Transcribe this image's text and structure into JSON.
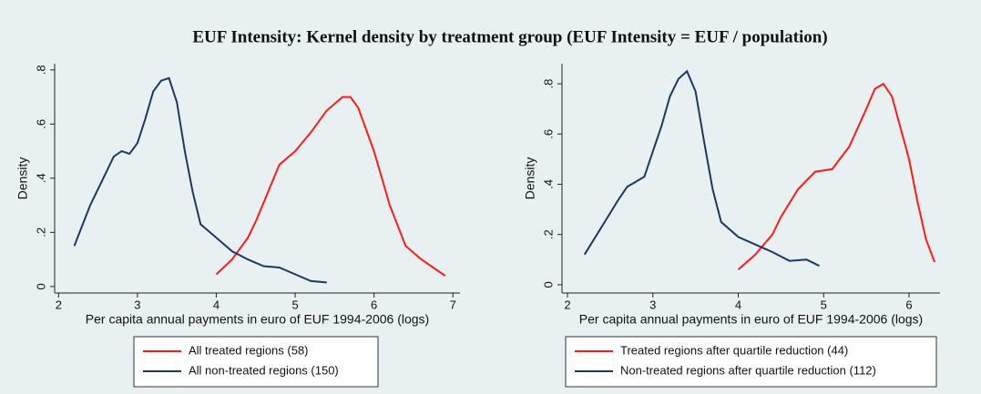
{
  "title": "EUF Intensity: Kernel density by treatment group (EUF Intensity = EUF / population)",
  "chart_data": [
    {
      "type": "line",
      "x_label": "Per capita annual payments in euro of EUF 1994-2006 (logs)",
      "y_label": "Density",
      "xlim": [
        1.95,
        7.09
      ],
      "ylim": [
        -0.024,
        0.823
      ],
      "xticks": [
        2,
        3,
        4,
        5,
        6,
        7
      ],
      "yticks": [
        0,
        {
          "value": 0.2,
          "label": ".2"
        },
        {
          "value": 0.4,
          "label": ".4"
        },
        {
          "value": 0.6,
          "label": ".6"
        },
        {
          "value": 0.8,
          "label": ".8"
        }
      ],
      "series": [
        {
          "name": "All treated regions (58)",
          "color": "#ff1a1a",
          "x": [
            4.0,
            4.2,
            4.4,
            4.5,
            4.7,
            4.8,
            5.0,
            5.2,
            5.4,
            5.6,
            5.7,
            5.8,
            6.0,
            6.2,
            6.4,
            6.6,
            6.8,
            6.9
          ],
          "values": [
            0.045,
            0.1,
            0.18,
            0.24,
            0.38,
            0.45,
            0.5,
            0.57,
            0.65,
            0.7,
            0.7,
            0.66,
            0.5,
            0.3,
            0.15,
            0.1,
            0.06,
            0.04
          ]
        },
        {
          "name": "All non-treated regions (150)",
          "color": "#1c3766",
          "x": [
            2.2,
            2.4,
            2.6,
            2.7,
            2.8,
            2.9,
            3.0,
            3.1,
            3.2,
            3.3,
            3.4,
            3.5,
            3.6,
            3.7,
            3.8,
            4.0,
            4.2,
            4.4,
            4.6,
            4.8,
            5.0,
            5.2,
            5.4
          ],
          "values": [
            0.15,
            0.3,
            0.42,
            0.48,
            0.5,
            0.49,
            0.53,
            0.62,
            0.72,
            0.76,
            0.77,
            0.68,
            0.5,
            0.35,
            0.23,
            0.18,
            0.13,
            0.1,
            0.075,
            0.07,
            0.045,
            0.02,
            0.015
          ]
        }
      ]
    },
    {
      "type": "line",
      "x_label": "Per capita annual payments in euro of EUF 1994-2006 (logs)",
      "y_label": "Density",
      "xlim": [
        1.936,
        6.363
      ],
      "ylim": [
        -0.033,
        0.88
      ],
      "xticks": [
        2,
        3,
        4,
        5,
        6
      ],
      "yticks": [
        0,
        {
          "value": 0.2,
          "label": ".2"
        },
        {
          "value": 0.4,
          "label": ".4"
        },
        {
          "value": 0.6,
          "label": ".6"
        },
        {
          "value": 0.8,
          "label": ".8"
        }
      ],
      "series": [
        {
          "name": "Treated regions after quartile reduction (44)",
          "color": "#ff1a1a",
          "x": [
            4.0,
            4.2,
            4.4,
            4.5,
            4.7,
            4.9,
            5.1,
            5.3,
            5.5,
            5.6,
            5.7,
            5.8,
            6.0,
            6.1,
            6.2,
            6.3
          ],
          "values": [
            0.06,
            0.12,
            0.2,
            0.27,
            0.38,
            0.45,
            0.46,
            0.55,
            0.7,
            0.78,
            0.8,
            0.75,
            0.5,
            0.33,
            0.18,
            0.09
          ]
        },
        {
          "name": "Non-treated regions after quartile reduction (112)",
          "color": "#1c3766",
          "x": [
            2.2,
            2.4,
            2.6,
            2.7,
            2.8,
            2.9,
            3.0,
            3.1,
            3.2,
            3.3,
            3.4,
            3.5,
            3.6,
            3.7,
            3.8,
            4.0,
            4.2,
            4.4,
            4.6,
            4.8,
            4.95
          ],
          "values": [
            0.12,
            0.23,
            0.34,
            0.39,
            0.41,
            0.43,
            0.53,
            0.63,
            0.75,
            0.82,
            0.85,
            0.77,
            0.57,
            0.38,
            0.25,
            0.19,
            0.16,
            0.13,
            0.095,
            0.1,
            0.075
          ]
        }
      ]
    }
  ]
}
